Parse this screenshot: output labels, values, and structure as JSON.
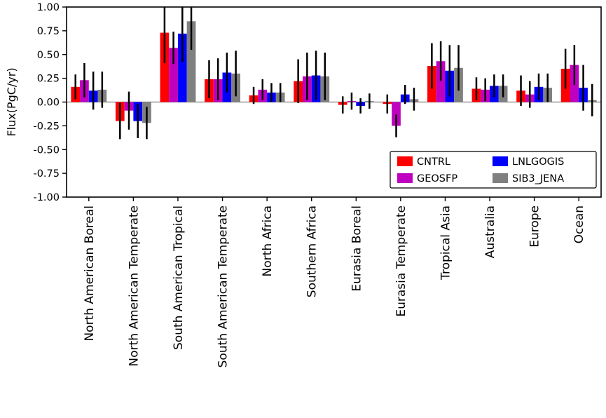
{
  "figure": {
    "background": "#ffffff",
    "axis_color": "#000000",
    "zero_line_color": "#808080",
    "error_bar_color": "#000000"
  },
  "chart_data": {
    "type": "bar",
    "title": "",
    "xlabel": "",
    "ylabel": "Flux(PgC/yr)",
    "ylim": [
      -1.0,
      1.0
    ],
    "ytick_step": 0.25,
    "grid": false,
    "zero_line": true,
    "legend_position": "inside lower right, two columns",
    "categories": [
      "North American Boreal",
      "North American Temperate",
      "South American Tropical",
      "South American Temperate",
      "North Africa",
      "Southern Africa",
      "Eurasia Boreal",
      "Eurasia Temperate",
      "Tropical Asia",
      "Australia",
      "Europe",
      "Ocean"
    ],
    "series": [
      {
        "name": "CNTRL",
        "color": "#ff0000",
        "values": [
          0.16,
          -0.2,
          0.73,
          0.24,
          0.07,
          0.22,
          -0.03,
          -0.02,
          0.38,
          0.14,
          0.12,
          0.35
        ],
        "errors": [
          0.13,
          0.19,
          0.32,
          0.2,
          0.09,
          0.23,
          0.09,
          0.1,
          0.24,
          0.12,
          0.16,
          0.21
        ]
      },
      {
        "name": "GEOSFP",
        "color": "#c000c0",
        "values": [
          0.23,
          -0.09,
          0.57,
          0.24,
          0.13,
          0.27,
          0.01,
          -0.25,
          0.43,
          0.13,
          0.08,
          0.39
        ],
        "errors": [
          0.18,
          0.2,
          0.17,
          0.22,
          0.11,
          0.25,
          0.09,
          0.12,
          0.21,
          0.12,
          0.14,
          0.21
        ]
      },
      {
        "name": "LNLGOGIS",
        "color": "#0000ff",
        "values": [
          0.12,
          -0.2,
          0.72,
          0.31,
          0.1,
          0.28,
          -0.04,
          0.08,
          0.33,
          0.17,
          0.16,
          0.15
        ],
        "errors": [
          0.2,
          0.18,
          0.3,
          0.21,
          0.1,
          0.26,
          0.08,
          0.1,
          0.27,
          0.12,
          0.14,
          0.24
        ]
      },
      {
        "name": "SIB3_JENA",
        "color": "#808080",
        "values": [
          0.13,
          -0.22,
          0.85,
          0.3,
          0.1,
          0.27,
          0.01,
          0.03,
          0.36,
          0.17,
          0.15,
          0.02
        ],
        "errors": [
          0.19,
          0.17,
          0.3,
          0.24,
          0.1,
          0.25,
          0.08,
          0.12,
          0.24,
          0.12,
          0.15,
          0.17
        ]
      }
    ]
  }
}
